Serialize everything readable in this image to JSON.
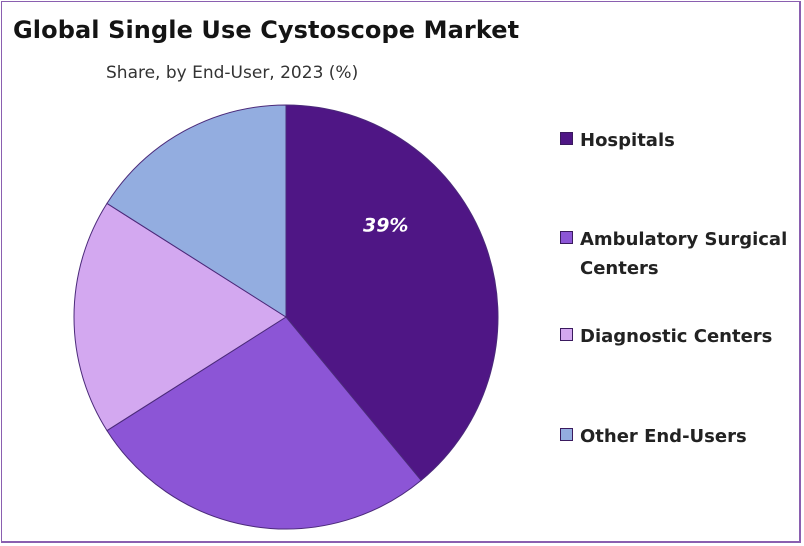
{
  "chart_data": {
    "type": "pie",
    "title": "Global Single Use Cystoscope Market",
    "subtitle": "Share, by End-User, 2023 (%)",
    "categories": [
      "Hospitals",
      "Ambulatory Surgical Centers",
      "Diagnostic Centers",
      "Other End-Users"
    ],
    "values": [
      39,
      27,
      18,
      16
    ],
    "data_labels": [
      "39%",
      "",
      "",
      ""
    ],
    "colors": [
      "#4f1685",
      "#8c55d6",
      "#d3a8f0",
      "#93ade0"
    ],
    "legend_position": "right"
  }
}
